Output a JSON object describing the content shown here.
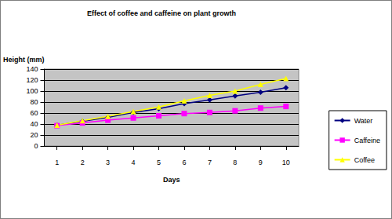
{
  "chart_data": {
    "type": "line",
    "title": "Effect of coffee and caffeine on plant growth",
    "x_label": "Days",
    "y_label": "Height (mm)",
    "categories": [
      "1",
      "2",
      "3",
      "4",
      "5",
      "6",
      "7",
      "8",
      "9",
      "10"
    ],
    "series": [
      {
        "name": "Water",
        "color": "#000080",
        "marker": "diamond",
        "values": [
          38,
          45,
          52,
          61,
          68,
          77,
          84,
          91,
          98,
          106
        ]
      },
      {
        "name": "Caffeine",
        "color": "#ff00ff",
        "marker": "square",
        "values": [
          37,
          42,
          47,
          51,
          55,
          59,
          61,
          64,
          69,
          72
        ]
      },
      {
        "name": "Coffee",
        "color": "#ffff00",
        "marker": "triangle",
        "values": [
          38,
          46,
          54,
          63,
          71,
          82,
          92,
          100,
          112,
          123
        ]
      }
    ],
    "ylim": [
      0,
      140
    ],
    "yticks": [
      0,
      20,
      40,
      60,
      80,
      100,
      120,
      140
    ],
    "grid": true,
    "legend": "right"
  }
}
